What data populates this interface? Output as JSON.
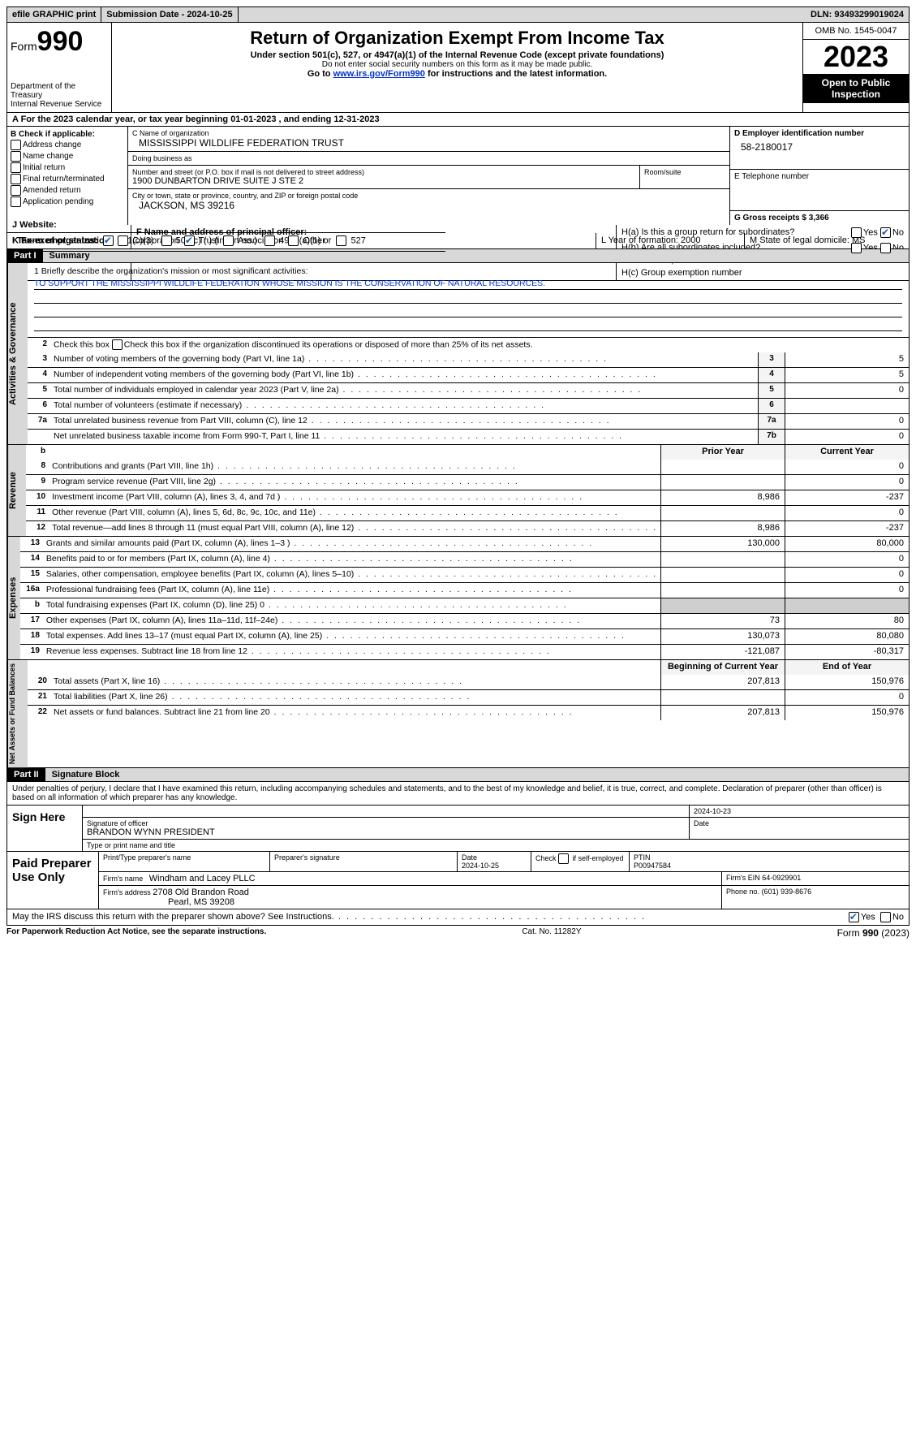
{
  "topbar": {
    "efile": "efile GRAPHIC print",
    "submission": "Submission Date - 2024-10-25",
    "dln": "DLN: 93493299019024"
  },
  "header": {
    "form_word": "Form",
    "form_num": "990",
    "dept": "Department of the Treasury\nInternal Revenue Service",
    "title": "Return of Organization Exempt From Income Tax",
    "sub": "Under section 501(c), 527, or 4947(a)(1) of the Internal Revenue Code (except private foundations)",
    "warn": "Do not enter social security numbers on this form as it may be made public.",
    "goto_pre": "Go to ",
    "goto_link": "www.irs.gov/Form990",
    "goto_post": " for instructions and the latest information.",
    "omb": "OMB No. 1545-0047",
    "year": "2023",
    "open": "Open to Public Inspection"
  },
  "rowA": "A For the 2023 calendar year, or tax year beginning 01-01-2023    , and ending 12-31-2023",
  "boxB": {
    "title": "B Check if applicable:",
    "items": [
      "Address change",
      "Name change",
      "Initial return",
      "Final return/terminated",
      "Amended return",
      "Application pending"
    ]
  },
  "boxC": {
    "name_lbl": "C Name of organization",
    "name": "MISSISSIPPI WILDLIFE FEDERATION TRUST",
    "dba_lbl": "Doing business as",
    "dba": "",
    "addr_lbl": "Number and street (or P.O. box if mail is not delivered to street address)",
    "addr": "1900 DUNBARTON DRIVE SUITE J STE 2",
    "room_lbl": "Room/suite",
    "city_lbl": "City or town, state or province, country, and ZIP or foreign postal code",
    "city": "JACKSON, MS  39216"
  },
  "boxD": {
    "lbl": "D Employer identification number",
    "val": "58-2180017"
  },
  "boxE": {
    "lbl": "E Telephone number",
    "val": ""
  },
  "boxG": {
    "lbl": "G Gross receipts $ 3,366"
  },
  "boxF": {
    "lbl": "F  Name and address of principal officer:",
    "val": ""
  },
  "boxH": {
    "a": "H(a)  Is this a group return for subordinates?",
    "b": "H(b)  Are all subordinates included?",
    "ifno": "If \"No,\" attach a list. See instructions.",
    "c": "H(c)  Group exemption number",
    "yes": "Yes",
    "no": "No"
  },
  "rowI": {
    "lbl": "I  Tax-exempt status:",
    "o1": "501(c)(3)",
    "o2": "501(c) (  ) (insert no.)",
    "o3": "4947(a)(1) or",
    "o4": "527"
  },
  "rowJ": {
    "lbl": "J  Website:",
    "val": ""
  },
  "rowK": {
    "lbl": "K Form of organization:",
    "o1": "Corporation",
    "o2": "Trust",
    "o3": "Association",
    "o4": "Other"
  },
  "rowL": {
    "lbl": "L Year of formation: 2000"
  },
  "rowM": {
    "lbl": "M State of legal domicile: MS"
  },
  "part1": {
    "num": "Part I",
    "title": "Summary"
  },
  "mission": {
    "lbl": "1  Briefly describe the organization's mission or most significant activities:",
    "text": "TO SUPPORT THE MISSISSIPPI WILDLIFE FEDERATION WHOSE MISSION IS THE CONSERVATION OF NATURAL RESOURCES."
  },
  "gov": {
    "l2": "Check this box        if the organization discontinued its operations or disposed of more than 25% of its net assets.",
    "lines": [
      {
        "n": "3",
        "t": "Number of voting members of the governing body (Part VI, line 1a)",
        "box": "3",
        "v": "5"
      },
      {
        "n": "4",
        "t": "Number of independent voting members of the governing body (Part VI, line 1b)",
        "box": "4",
        "v": "5"
      },
      {
        "n": "5",
        "t": "Total number of individuals employed in calendar year 2023 (Part V, line 2a)",
        "box": "5",
        "v": "0"
      },
      {
        "n": "6",
        "t": "Total number of volunteers (estimate if necessary)",
        "box": "6",
        "v": ""
      },
      {
        "n": "7a",
        "t": "Total unrelated business revenue from Part VIII, column (C), line 12",
        "box": "7a",
        "v": "0"
      },
      {
        "n": "",
        "t": "Net unrelated business taxable income from Form 990-T, Part I, line 11",
        "box": "7b",
        "v": "0"
      }
    ]
  },
  "cols": {
    "b": "b",
    "prior": "Prior Year",
    "curr": "Current Year",
    "boy": "Beginning of Current Year",
    "eoy": "End of Year"
  },
  "revenue": [
    {
      "n": "8",
      "t": "Contributions and grants (Part VIII, line 1h)",
      "p": "",
      "c": "0"
    },
    {
      "n": "9",
      "t": "Program service revenue (Part VIII, line 2g)",
      "p": "",
      "c": "0"
    },
    {
      "n": "10",
      "t": "Investment income (Part VIII, column (A), lines 3, 4, and 7d )",
      "p": "8,986",
      "c": "-237"
    },
    {
      "n": "11",
      "t": "Other revenue (Part VIII, column (A), lines 5, 6d, 8c, 9c, 10c, and 11e)",
      "p": "",
      "c": "0"
    },
    {
      "n": "12",
      "t": "Total revenue—add lines 8 through 11 (must equal Part VIII, column (A), line 12)",
      "p": "8,986",
      "c": "-237"
    }
  ],
  "expenses": [
    {
      "n": "13",
      "t": "Grants and similar amounts paid (Part IX, column (A), lines 1–3 )",
      "p": "130,000",
      "c": "80,000"
    },
    {
      "n": "14",
      "t": "Benefits paid to or for members (Part IX, column (A), line 4)",
      "p": "",
      "c": "0"
    },
    {
      "n": "15",
      "t": "Salaries, other compensation, employee benefits (Part IX, column (A), lines 5–10)",
      "p": "",
      "c": "0"
    },
    {
      "n": "16a",
      "t": "Professional fundraising fees (Part IX, column (A), line 11e)",
      "p": "",
      "c": "0"
    },
    {
      "n": "b",
      "t": "Total fundraising expenses (Part IX, column (D), line 25) 0",
      "p": "shade",
      "c": "shade"
    },
    {
      "n": "17",
      "t": "Other expenses (Part IX, column (A), lines 11a–11d, 11f–24e)",
      "p": "73",
      "c": "80"
    },
    {
      "n": "18",
      "t": "Total expenses. Add lines 13–17 (must equal Part IX, column (A), line 25)",
      "p": "130,073",
      "c": "80,080"
    },
    {
      "n": "19",
      "t": "Revenue less expenses. Subtract line 18 from line 12",
      "p": "-121,087",
      "c": "-80,317"
    }
  ],
  "netassets": [
    {
      "n": "20",
      "t": "Total assets (Part X, line 16)",
      "p": "207,813",
      "c": "150,976"
    },
    {
      "n": "21",
      "t": "Total liabilities (Part X, line 26)",
      "p": "",
      "c": "0"
    },
    {
      "n": "22",
      "t": "Net assets or fund balances. Subtract line 21 from line 20",
      "p": "207,813",
      "c": "150,976"
    }
  ],
  "part2": {
    "num": "Part II",
    "title": "Signature Block"
  },
  "perjury": "Under penalties of perjury, I declare that I have examined this return, including accompanying schedules and statements, and to the best of my knowledge and belief, it is true, correct, and complete. Declaration of preparer (other than officer) is based on all information of which preparer has any knowledge.",
  "sign": {
    "label": "Sign Here",
    "date": "2024-10-23",
    "sig_lbl": "Signature of officer",
    "name": "BRANDON WYNN PRESIDENT",
    "type_lbl": "Type or print name and title",
    "date_lbl": "Date"
  },
  "paid": {
    "label": "Paid Preparer Use Only",
    "h1": "Print/Type preparer's name",
    "h2": "Preparer's signature",
    "h3": "Date",
    "date": "2024-10-25",
    "h4": "Check        if self-employed",
    "h5_lbl": "PTIN",
    "h5": "P00947584",
    "firm_lbl": "Firm's name",
    "firm": "Windham and Lacey PLLC",
    "ein_lbl": "Firm's EIN",
    "ein": "64-0929901",
    "addr_lbl": "Firm's address",
    "addr1": "2708 Old Brandon Road",
    "addr2": "Pearl, MS  39208",
    "phone_lbl": "Phone no.",
    "phone": "(601) 939-8676"
  },
  "discuss": {
    "q": "May the IRS discuss this return with the preparer shown above? See Instructions.",
    "yes": "Yes",
    "no": "No"
  },
  "footer": {
    "l": "For Paperwork Reduction Act Notice, see the separate instructions.",
    "m": "Cat. No. 11282Y",
    "r_pre": "Form ",
    "r_b": "990",
    "r_post": " (2023)"
  },
  "vlabels": {
    "gov": "Activities & Governance",
    "rev": "Revenue",
    "exp": "Expenses",
    "net": "Net Assets or Fund Balances"
  }
}
